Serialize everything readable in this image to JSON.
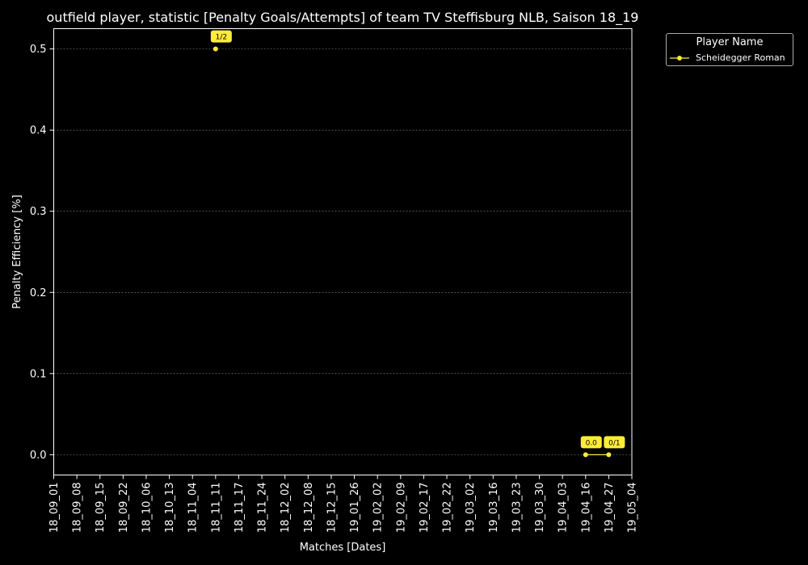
{
  "chart_data": {
    "type": "line",
    "title": "outfield player, statistic [Penalty Goals/Attempts] of team TV Steffisburg NLB, Saison 18_19",
    "xlabel": "Matches [Dates]",
    "ylabel": "Penalty Efficiency [%]",
    "categories": [
      "18_09_01",
      "18_09_08",
      "18_09_15",
      "18_09_22",
      "18_10_06",
      "18_10_13",
      "18_11_04",
      "18_11_11",
      "18_11_17",
      "18_11_24",
      "18_12_02",
      "18_12_08",
      "18_12_15",
      "19_01_26",
      "19_02_02",
      "19_02_09",
      "19_02_17",
      "19_02_22",
      "19_03_02",
      "19_03_16",
      "19_03_23",
      "19_03_30",
      "19_04_03",
      "19_04_16",
      "19_04_27",
      "19_05_04"
    ],
    "ylim": [
      -0.025,
      0.525
    ],
    "yticks": [
      "0.0",
      "0.1",
      "0.2",
      "0.3",
      "0.4",
      "0.5"
    ],
    "grid": "horizontal",
    "legend": {
      "title": "Player Name",
      "placement": "outside-top-right"
    },
    "background": "#000000",
    "series": [
      {
        "name": "Scheidegger Roman",
        "color": "#ffeb3b",
        "points": [
          {
            "x": "18_11_11",
            "y": 0.5,
            "label": "1/2"
          },
          {
            "x": "19_04_16",
            "y": 0.0,
            "label": "0.0"
          },
          {
            "x": "19_04_27",
            "y": 0.0,
            "label": "0/1"
          }
        ]
      }
    ]
  }
}
